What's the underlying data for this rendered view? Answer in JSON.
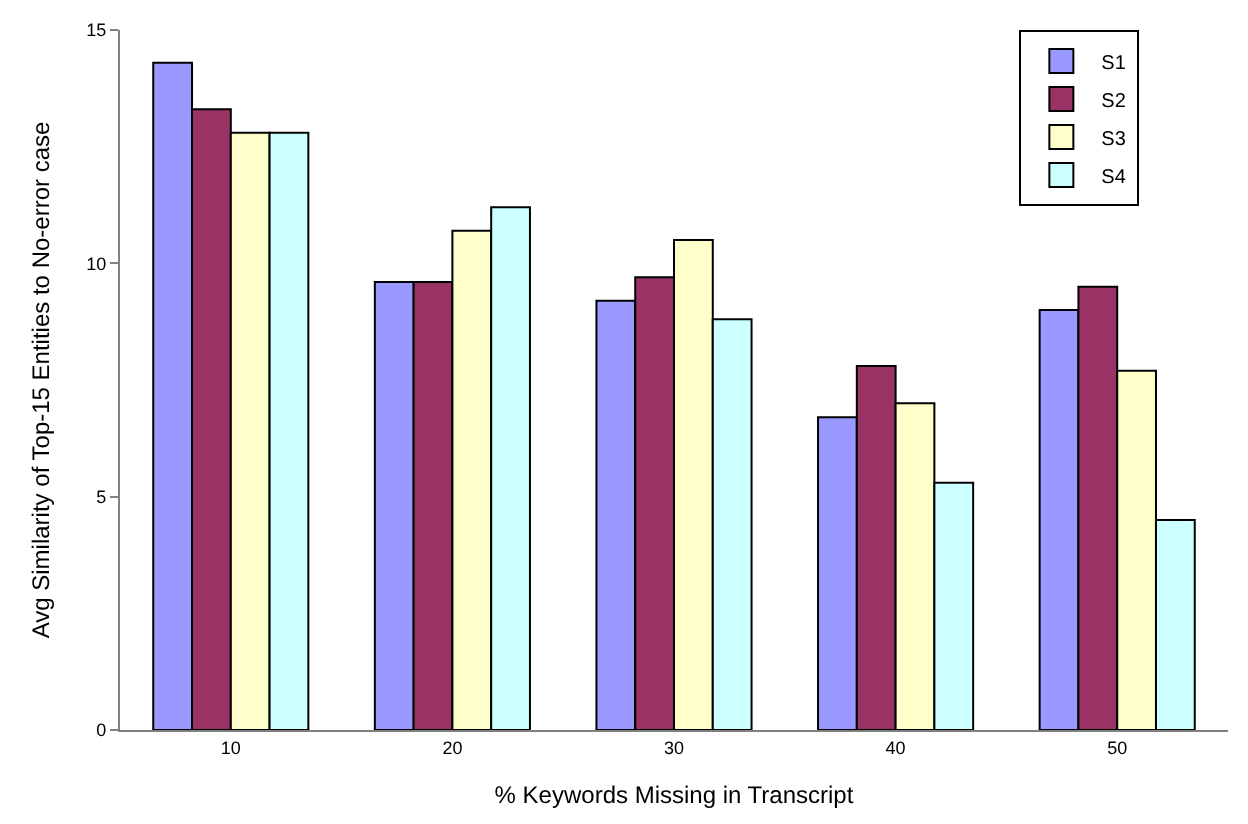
{
  "chart_data": {
    "type": "bar",
    "xlabel": "% Keywords Missing in Transcript",
    "ylabel": "Avg Similarity of Top-15 Entities to No-error case",
    "categories": [
      "10",
      "20",
      "30",
      "40",
      "50"
    ],
    "series": [
      {
        "name": "S1",
        "color": "#9999ff",
        "values": [
          14.3,
          9.6,
          9.2,
          6.7,
          9.0
        ]
      },
      {
        "name": "S2",
        "color": "#993366",
        "values": [
          13.3,
          9.6,
          9.7,
          7.8,
          9.5
        ]
      },
      {
        "name": "S3",
        "color": "#ffffcc",
        "values": [
          12.8,
          10.7,
          10.5,
          7.0,
          7.7
        ]
      },
      {
        "name": "S4",
        "color": "#ccffff",
        "values": [
          12.8,
          11.2,
          8.8,
          5.3,
          4.5
        ]
      }
    ],
    "ylim": [
      0,
      15
    ],
    "yticks": [
      0,
      5,
      10,
      15
    ],
    "legend": "top right"
  }
}
